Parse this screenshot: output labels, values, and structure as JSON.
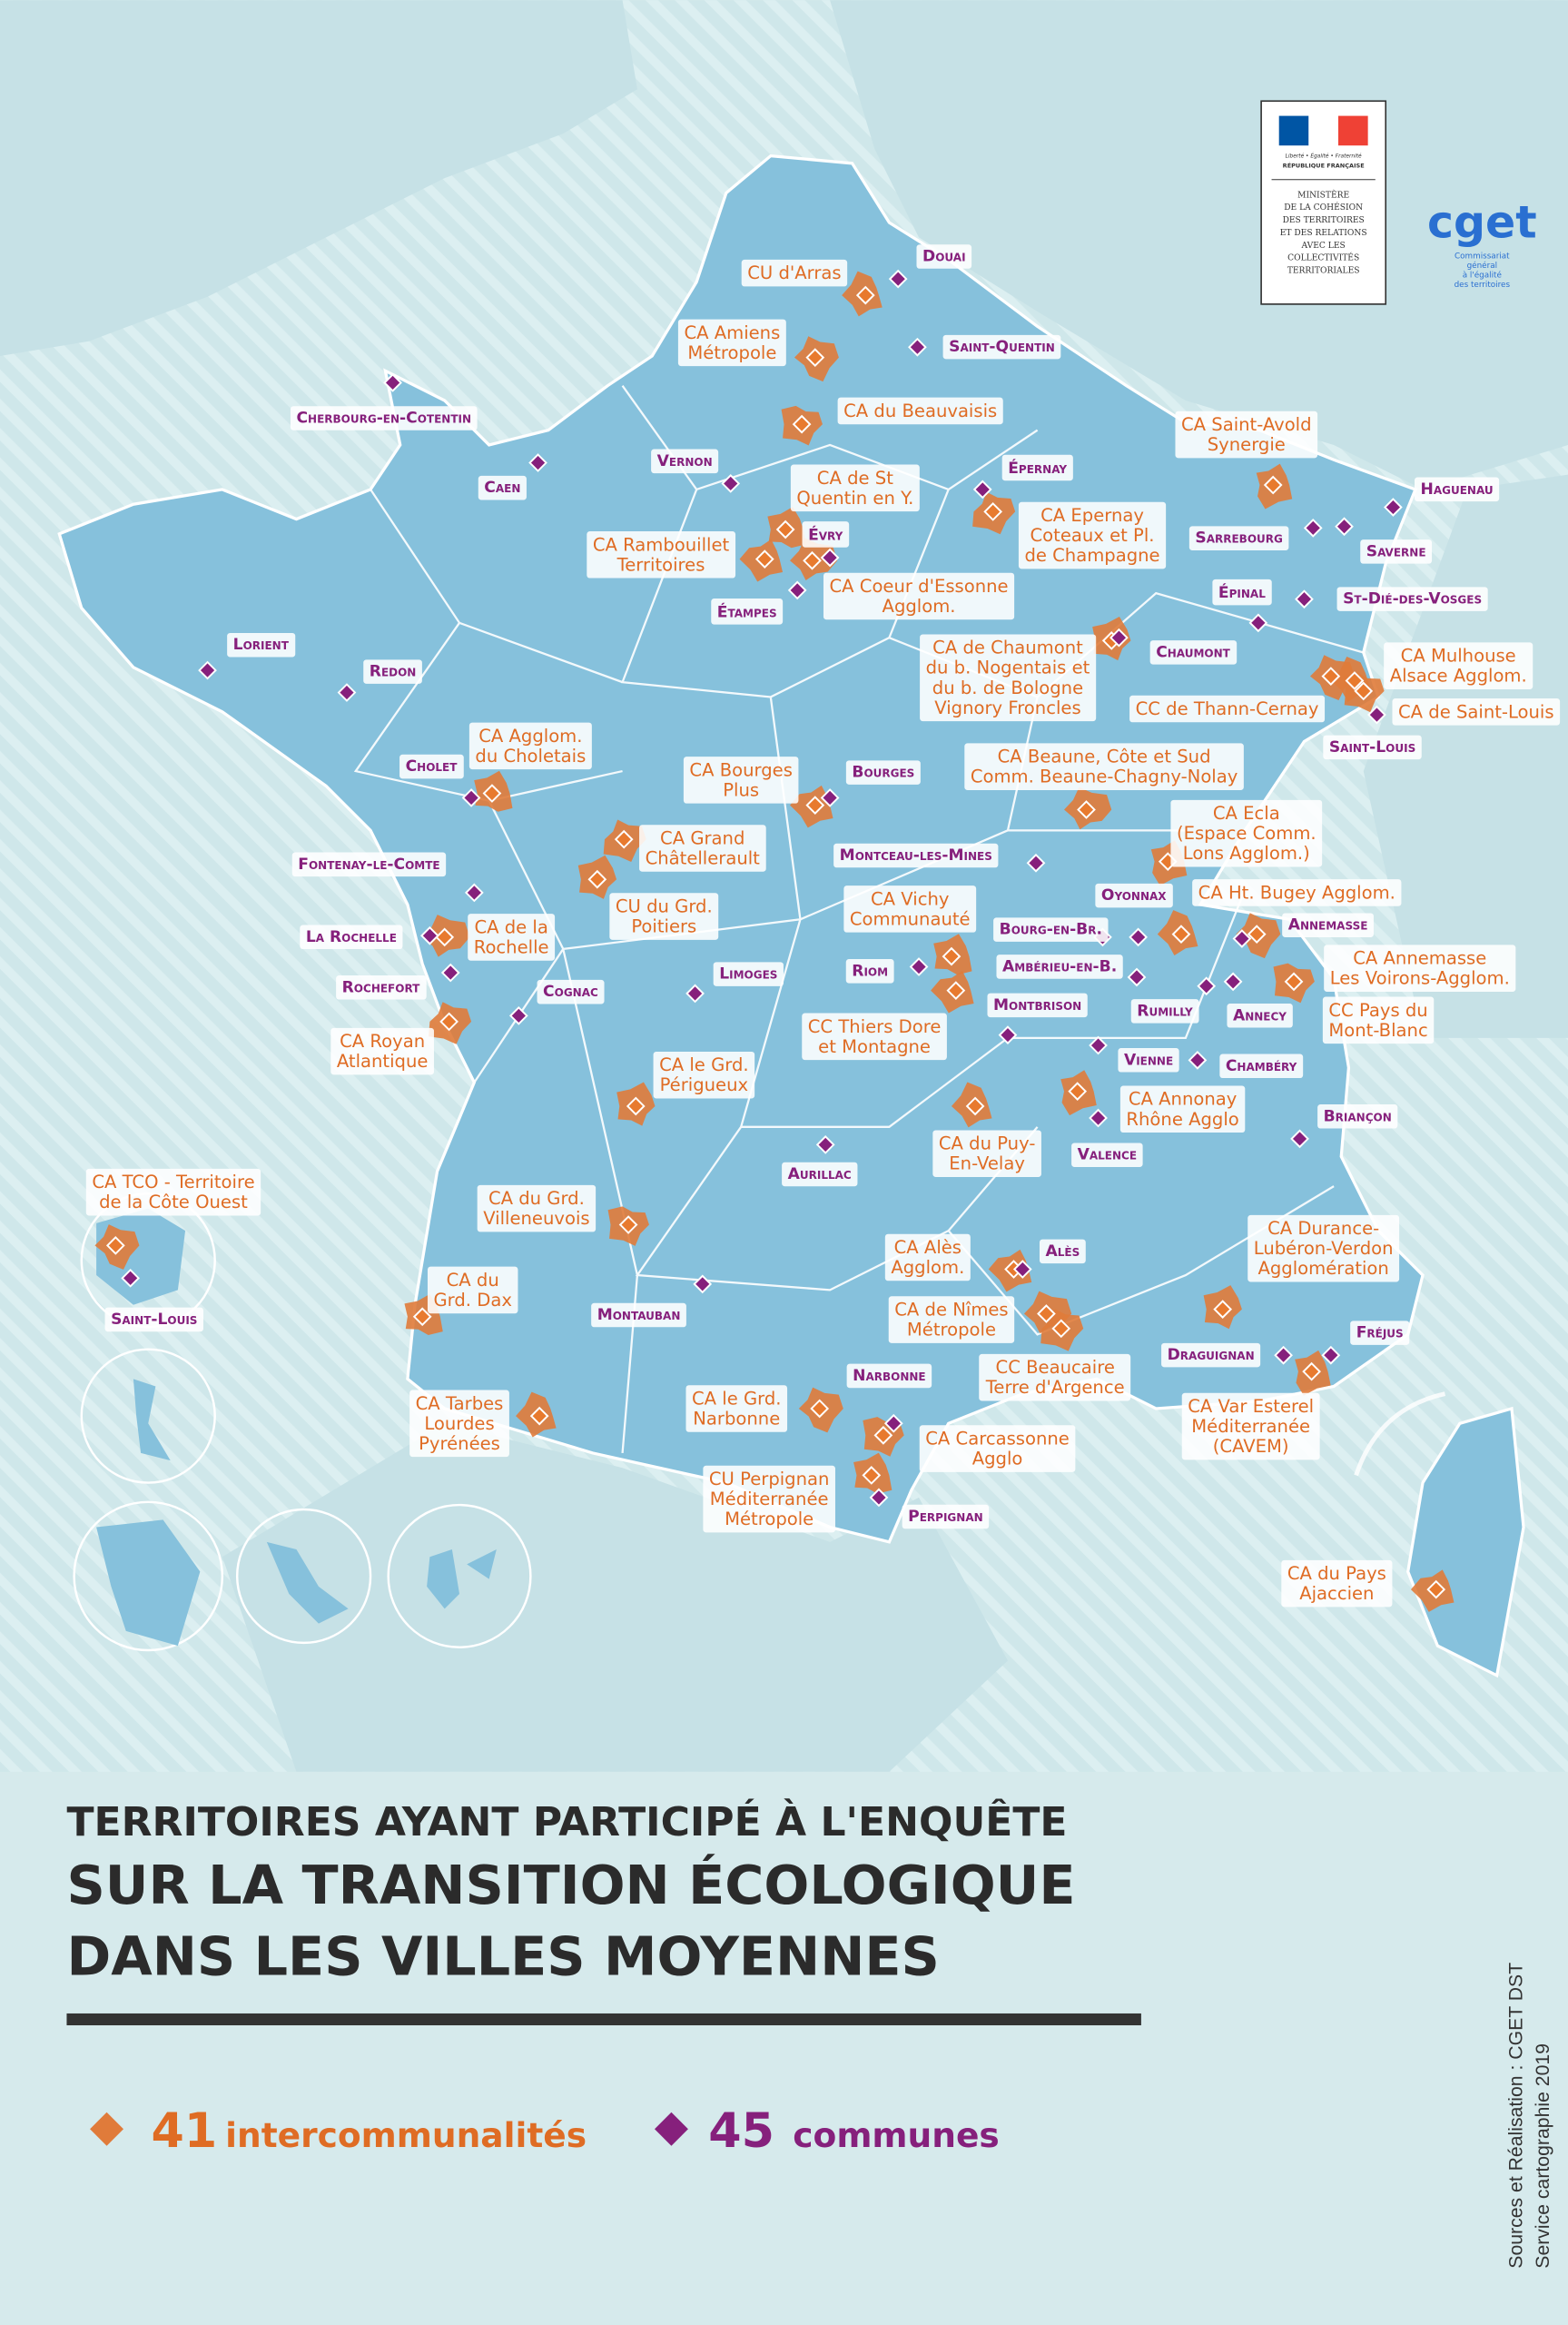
{
  "logo": {
    "motto": "Liberté • Égalité • Fraternité",
    "republic": "RÉPUBLIQUE FRANÇAISE",
    "ministry": [
      "MINISTÈRE",
      "DE LA COHÉSION",
      "DES TERRITOIRES",
      "ET DES RELATIONS",
      "AVEC LES",
      "COLLECTIVITÉS",
      "TERRITORIALES"
    ],
    "cget": "cget",
    "cget_sub": [
      "Commissariat",
      "général",
      "à l'égalité",
      "des territoires"
    ]
  },
  "communes": [
    "Douai",
    "Saint-Quentin",
    "Cherbourg-en-Cotentin",
    "Caen",
    "Vernon",
    "Épernay",
    "Évry",
    "Étampes",
    "Lorient",
    "Redon",
    "Cholet",
    "Bourges",
    "Fontenay-le-Comte",
    "Montceau-les-Mines",
    "La Rochelle",
    "Rochefort",
    "Cognac",
    "Limoges",
    "Riom",
    "Montbrison",
    "Aurillac",
    "Montauban",
    "Narbonne",
    "Perpignan",
    "Saint-Louis",
    "Alès",
    "Valence",
    "Vienne",
    "Chaumont",
    "Sarrebourg",
    "Haguenau",
    "Saverne",
    "Épinal",
    "St-Dié-des-Vosges",
    "Saint-Louis",
    "Oyonnax",
    "Bourg-en-Br.",
    "Ambérieu-en-B.",
    "Annemasse",
    "Rumilly",
    "Annecy",
    "Chambéry",
    "Briançon",
    "Draguignan",
    "Fréjus"
  ],
  "intercommunalites": [
    [
      "CU d'Arras"
    ],
    [
      "CA Amiens",
      "Métropole"
    ],
    [
      "CA du Beauvaisis"
    ],
    [
      "CA de St",
      "Quentin en Y."
    ],
    [
      "CA Rambouillet",
      "Territoires"
    ],
    [
      "CA Coeur d'Essonne",
      "Agglom."
    ],
    [
      "CA Epernay",
      "Coteaux et Pl.",
      "de Champagne"
    ],
    [
      "CA de Chaumont",
      "du b. Nogentais et",
      "du b. de Bologne",
      "Vignory Froncles"
    ],
    [
      "CA Saint-Avold",
      "Synergie"
    ],
    [
      "CA Mulhouse",
      "Alsace Agglom."
    ],
    [
      "CC de Thann-Cernay"
    ],
    [
      "CA de Saint-Louis"
    ],
    [
      "CA Agglom.",
      "du Choletais"
    ],
    [
      "CA Bourges",
      "Plus"
    ],
    [
      "CA Beaune, Côte et Sud",
      "Comm. Beaune-Chagny-Nolay"
    ],
    [
      "CA Grand",
      "Châtellerault"
    ],
    [
      "CU du Grd.",
      "Poitiers"
    ],
    [
      "CA Ecla",
      "(Espace Comm.",
      "Lons Agglom.)"
    ],
    [
      "CA Ht. Bugey Agglom."
    ],
    [
      "CA Annemasse",
      "Les Voirons-Agglom."
    ],
    [
      "CC Pays du",
      "Mont-Blanc"
    ],
    [
      "CA Vichy",
      "Communauté"
    ],
    [
      "CC Thiers Dore",
      "et Montagne"
    ],
    [
      "CA de la",
      "Rochelle"
    ],
    [
      "CA Royan",
      "Atlantique"
    ],
    [
      "CA le Grd.",
      "Périgueux"
    ],
    [
      "CA Annonay",
      "Rhône Agglo"
    ],
    [
      "CA du Puy-",
      "En-Velay"
    ],
    [
      "CA TCO - Territoire",
      "de la Côte Ouest"
    ],
    [
      "CA du Grd.",
      "Villeneuvois"
    ],
    [
      "CA du",
      "Grd. Dax"
    ],
    [
      "CA Alès",
      "Agglom."
    ],
    [
      "CA de Nîmes",
      "Métropole"
    ],
    [
      "CC Beaucaire",
      "Terre d'Argence"
    ],
    [
      "CA Durance-",
      "Lubéron-Verdon",
      "Agglomération"
    ],
    [
      "CA Var Esterel",
      "Méditerranée",
      "(CAVEM)"
    ],
    [
      "CA Tarbes",
      "Lourdes",
      "Pyrénées"
    ],
    [
      "CA le Grd.",
      "Narbonne"
    ],
    [
      "CA Carcassonne",
      "Agglo"
    ],
    [
      "CU Perpignan",
      "Méditerranée",
      "Métropole"
    ],
    [
      "CA du Pays",
      "Ajaccien"
    ]
  ],
  "title": [
    "TERRITOIRES AYANT PARTICIPÉ À L'ENQUÊTE",
    "SUR LA TRANSITION ÉCOLOGIQUE",
    "DANS LES VILLES MOYENNES"
  ],
  "legend": [
    {
      "count": 41,
      "label": "intercommunalités"
    },
    {
      "count": 45,
      "label": "communes"
    }
  ],
  "sources": [
    "Sources et Réalisation : CGET DST",
    "Service cartographie 2019"
  ]
}
